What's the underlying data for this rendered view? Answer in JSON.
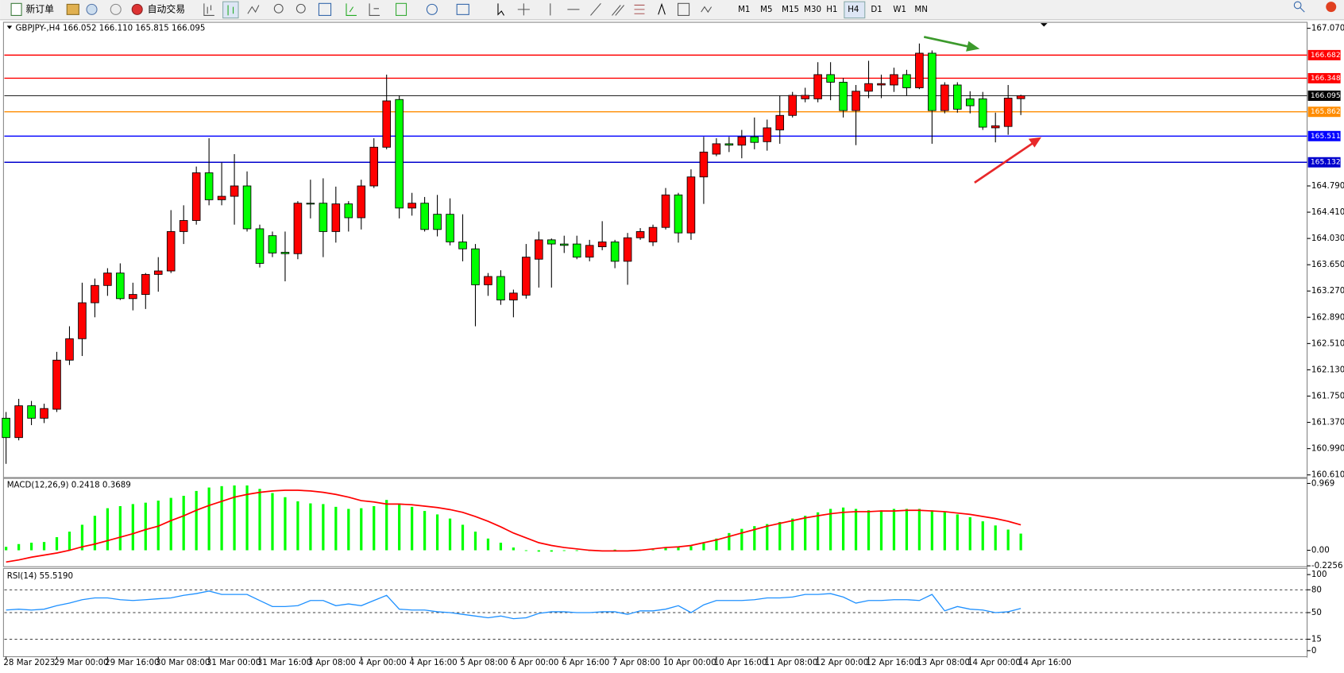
{
  "toolbar": {
    "buttons": [
      "新订单",
      "自动交易"
    ],
    "timeframes": [
      "M1",
      "M5",
      "M15",
      "M30",
      "H1",
      "H4",
      "D1",
      "W1",
      "MN"
    ],
    "active_timeframe": "H4"
  },
  "chart_data": [
    {
      "type": "candlestick",
      "title": "GBPJPY-,H4 166.052 166.110 165.815 166.095",
      "up_color": "#ff0000",
      "down_color": "#00ff00",
      "categories": [
        "28 Mar 2023",
        null,
        null,
        null,
        "29 Mar 00:00",
        null,
        null,
        null,
        "29 Mar 16:00",
        null,
        null,
        null,
        "30 Mar 08:00",
        null,
        null,
        null,
        "31 Mar 00:00",
        null,
        null,
        null,
        "31 Mar 16:00",
        null,
        null,
        null,
        "3 Apr 08:00",
        null,
        null,
        null,
        "4 Apr 00:00",
        null,
        null,
        null,
        "4 Apr 16:00",
        null,
        null,
        null,
        "5 Apr 08:00",
        null,
        null,
        null,
        "6 Apr 00:00",
        null,
        null,
        null,
        "6 Apr 16:00",
        null,
        null,
        null,
        "7 Apr 08:00",
        null,
        null,
        null,
        "10 Apr 00:00",
        null,
        null,
        null,
        "10 Apr 16:00",
        null,
        null,
        null,
        "11 Apr 08:00",
        null,
        null,
        null,
        "12 Apr 00:00",
        null,
        null,
        null,
        "12 Apr 16:00",
        null,
        null,
        null,
        "13 Apr 08:00",
        null,
        null,
        null,
        "14 Apr 00:00",
        null,
        null,
        null,
        "14 Apr 16:00"
      ],
      "open": [
        161.43,
        161.15,
        161.61,
        161.43,
        161.56,
        162.27,
        162.58,
        163.1,
        163.35,
        163.53,
        163.16,
        163.22,
        163.51,
        163.56,
        164.13,
        164.29,
        164.98,
        164.59,
        164.64,
        164.79,
        164.17,
        164.07,
        163.83,
        163.81,
        164.54,
        164.54,
        164.13,
        164.53,
        164.33,
        164.79,
        165.35,
        166.04,
        164.47,
        164.54,
        164.38,
        164.38,
        163.98,
        163.88,
        163.36,
        163.48,
        163.14,
        163.21,
        163.73,
        164.01,
        163.95,
        163.95,
        163.76,
        163.91,
        163.98,
        163.7,
        164.04,
        163.98,
        164.19,
        164.66,
        164.11,
        164.92,
        165.25,
        165.4,
        165.38,
        165.5,
        165.43,
        165.6,
        165.81,
        166.05,
        166.05,
        166.4,
        166.29,
        165.88,
        166.16,
        166.25,
        166.25,
        166.4,
        166.21,
        166.71,
        165.88,
        166.25,
        166.05,
        166.05,
        165.63,
        165.65,
        166.052
      ],
      "high": [
        161.52,
        161.71,
        161.68,
        161.64,
        162.39,
        162.76,
        163.39,
        163.45,
        163.6,
        163.67,
        163.39,
        163.53,
        163.76,
        164.44,
        164.51,
        165.07,
        165.48,
        165.13,
        165.25,
        165.0,
        164.23,
        164.13,
        164.13,
        164.57,
        164.88,
        164.9,
        164.78,
        164.57,
        164.88,
        165.48,
        166.4,
        166.1,
        164.69,
        164.63,
        164.66,
        164.61,
        164.38,
        163.95,
        163.53,
        163.57,
        163.29,
        163.95,
        164.13,
        164.03,
        164.07,
        164.07,
        164.01,
        164.28,
        164.01,
        164.11,
        164.18,
        164.23,
        164.76,
        164.69,
        165.03,
        165.5,
        165.48,
        165.5,
        165.6,
        165.78,
        165.75,
        166.1,
        166.15,
        166.21,
        166.58,
        166.58,
        166.35,
        166.25,
        166.6,
        166.4,
        166.5,
        166.47,
        166.85,
        166.75,
        166.29,
        166.29,
        166.16,
        166.15,
        165.85,
        166.25,
        166.11
      ],
      "low": [
        160.77,
        161.11,
        161.33,
        161.36,
        161.52,
        162.2,
        162.33,
        162.89,
        163.2,
        163.14,
        162.99,
        163.01,
        163.26,
        163.53,
        163.95,
        164.23,
        164.51,
        164.51,
        164.23,
        164.13,
        163.61,
        163.76,
        163.41,
        163.73,
        164.32,
        163.76,
        163.97,
        164.13,
        164.16,
        164.76,
        165.32,
        164.32,
        164.36,
        164.13,
        164.06,
        163.93,
        163.7,
        162.76,
        163.2,
        163.07,
        162.89,
        163.16,
        163.32,
        163.32,
        163.82,
        163.73,
        163.7,
        163.86,
        163.6,
        163.36,
        164.01,
        163.92,
        164.16,
        163.97,
        164.01,
        164.53,
        165.22,
        165.28,
        165.19,
        165.32,
        165.3,
        165.4,
        165.78,
        166.0,
        166.0,
        166.03,
        165.78,
        165.38,
        166.06,
        166.06,
        166.15,
        166.1,
        166.19,
        165.4,
        165.84,
        165.85,
        165.84,
        165.6,
        165.42,
        165.53,
        165.815
      ],
      "close": [
        161.15,
        161.61,
        161.43,
        161.57,
        162.27,
        162.58,
        163.1,
        163.35,
        163.53,
        163.16,
        163.22,
        163.51,
        163.56,
        164.13,
        164.29,
        164.98,
        164.59,
        164.64,
        164.79,
        164.17,
        163.67,
        163.82,
        163.81,
        164.54,
        164.53,
        164.13,
        164.53,
        164.33,
        164.79,
        165.35,
        166.02,
        164.47,
        164.54,
        164.16,
        164.16,
        163.98,
        163.88,
        163.36,
        163.48,
        163.14,
        163.24,
        163.76,
        164.01,
        163.95,
        163.93,
        163.76,
        163.93,
        163.98,
        163.7,
        164.04,
        164.13,
        164.19,
        164.66,
        164.11,
        164.92,
        165.28,
        165.4,
        165.38,
        165.5,
        165.42,
        165.63,
        165.81,
        166.1,
        166.1,
        166.4,
        166.29,
        165.88,
        166.16,
        166.27,
        166.27,
        166.4,
        166.21,
        166.71,
        165.88,
        166.25,
        165.9,
        165.95,
        165.64,
        165.66,
        166.06,
        166.095
      ],
      "ylim": [
        160.572,
        167.157
      ],
      "yticks": [
        {
          "value": 167.07,
          "label": "167.070"
        },
        {
          "value": 164.79,
          "label": "164.790"
        },
        {
          "value": 164.41,
          "label": "164.410"
        },
        {
          "value": 164.03,
          "label": "164.030"
        },
        {
          "value": 163.65,
          "label": "163.650"
        },
        {
          "value": 163.27,
          "label": "163.270"
        },
        {
          "value": 162.89,
          "label": "162.890"
        },
        {
          "value": 162.51,
          "label": "162.510"
        },
        {
          "value": 162.13,
          "label": "162.130"
        },
        {
          "value": 161.75,
          "label": "161.750"
        },
        {
          "value": 161.37,
          "label": "161.370"
        },
        {
          "value": 160.99,
          "label": "160.990"
        },
        {
          "value": 160.61,
          "label": "160.610"
        }
      ],
      "levels": [
        {
          "value": 166.682,
          "color": "#ff0000"
        },
        {
          "value": 166.348,
          "color": "#ff0000"
        },
        {
          "value": 165.862,
          "color": "#ff8c00"
        },
        {
          "value": 165.511,
          "color": "#0000ff"
        },
        {
          "value": 165.132,
          "color": "#0000cd"
        }
      ],
      "current_price_color": "#000000"
    },
    {
      "type": "macd",
      "title": "MACD(12,26,9) 0.2418 0.3689",
      "series": [
        {
          "style": "bar",
          "color": "#00ff00",
          "values": [
            0.05,
            0.09,
            0.11,
            0.12,
            0.19,
            0.27,
            0.37,
            0.5,
            0.61,
            0.64,
            0.67,
            0.69,
            0.72,
            0.76,
            0.79,
            0.86,
            0.91,
            0.93,
            0.94,
            0.94,
            0.89,
            0.83,
            0.77,
            0.71,
            0.68,
            0.67,
            0.63,
            0.6,
            0.61,
            0.64,
            0.73,
            0.68,
            0.63,
            0.57,
            0.52,
            0.46,
            0.37,
            0.27,
            0.17,
            0.11,
            0.04,
            -0.01,
            -0.02,
            -0.02,
            -0.01,
            -0.01,
            -0.01,
            -0.01,
            0.01,
            0.0,
            0.01,
            0.01,
            0.04,
            0.05,
            0.06,
            0.1,
            0.17,
            0.25,
            0.31,
            0.35,
            0.38,
            0.41,
            0.46,
            0.5,
            0.55,
            0.6,
            0.62,
            0.6,
            0.58,
            0.58,
            0.6,
            0.6,
            0.6,
            0.58,
            0.56,
            0.52,
            0.48,
            0.42,
            0.36,
            0.3,
            0.2418
          ]
        },
        {
          "style": "line",
          "color": "#ff0000",
          "values": [
            -0.17,
            -0.14,
            -0.1,
            -0.07,
            -0.04,
            0.0,
            0.05,
            0.09,
            0.14,
            0.19,
            0.24,
            0.3,
            0.35,
            0.43,
            0.5,
            0.58,
            0.65,
            0.71,
            0.77,
            0.81,
            0.84,
            0.86,
            0.87,
            0.87,
            0.86,
            0.84,
            0.81,
            0.77,
            0.72,
            0.7,
            0.67,
            0.67,
            0.66,
            0.64,
            0.62,
            0.59,
            0.55,
            0.49,
            0.42,
            0.34,
            0.25,
            0.18,
            0.11,
            0.07,
            0.04,
            0.02,
            0.0,
            -0.01,
            -0.01,
            -0.01,
            0.0,
            0.02,
            0.04,
            0.05,
            0.07,
            0.11,
            0.15,
            0.2,
            0.25,
            0.3,
            0.35,
            0.39,
            0.43,
            0.47,
            0.5,
            0.53,
            0.55,
            0.56,
            0.56,
            0.57,
            0.57,
            0.58,
            0.58,
            0.57,
            0.56,
            0.54,
            0.52,
            0.49,
            0.46,
            0.42,
            0.3689
          ]
        }
      ],
      "ylim": [
        -0.2256,
        1.03
      ],
      "yticks": [
        0.969,
        {
          "value": 0,
          "label": "0.00"
        },
        -0.2256
      ]
    },
    {
      "type": "line",
      "title": "RSI(14) 55.5190",
      "series": [
        {
          "color": "#1e90ff",
          "values": [
            53.4,
            54.5,
            53.4,
            54.5,
            59.1,
            62.5,
            67.0,
            69.3,
            69.3,
            67.0,
            65.9,
            67.0,
            68.2,
            69.3,
            72.7,
            75.0,
            78.4,
            73.9,
            73.9,
            73.9,
            65.9,
            58.0,
            58.0,
            59.1,
            65.9,
            65.9,
            59.1,
            61.4,
            59.1,
            65.9,
            72.7,
            54.5,
            53.4,
            53.4,
            51.1,
            50.0,
            47.7,
            45.5,
            43.2,
            45.5,
            42.0,
            43.2,
            48.9,
            51.1,
            51.1,
            50.0,
            50.0,
            51.1,
            51.1,
            47.7,
            52.3,
            52.3,
            54.5,
            59.1,
            50.0,
            60.2,
            65.9,
            65.9,
            65.9,
            67.0,
            69.3,
            69.3,
            70.5,
            73.9,
            73.9,
            75.0,
            70.5,
            62.5,
            65.9,
            65.9,
            67.0,
            67.0,
            65.9,
            73.9,
            52.3,
            58.0,
            54.5,
            53.4,
            50.0,
            51.1,
            55.519
          ]
        }
      ],
      "ylim": [
        -8,
        107
      ],
      "yticks": [
        100,
        80,
        50,
        15,
        0
      ],
      "levels": [
        80,
        50,
        15
      ]
    }
  ]
}
